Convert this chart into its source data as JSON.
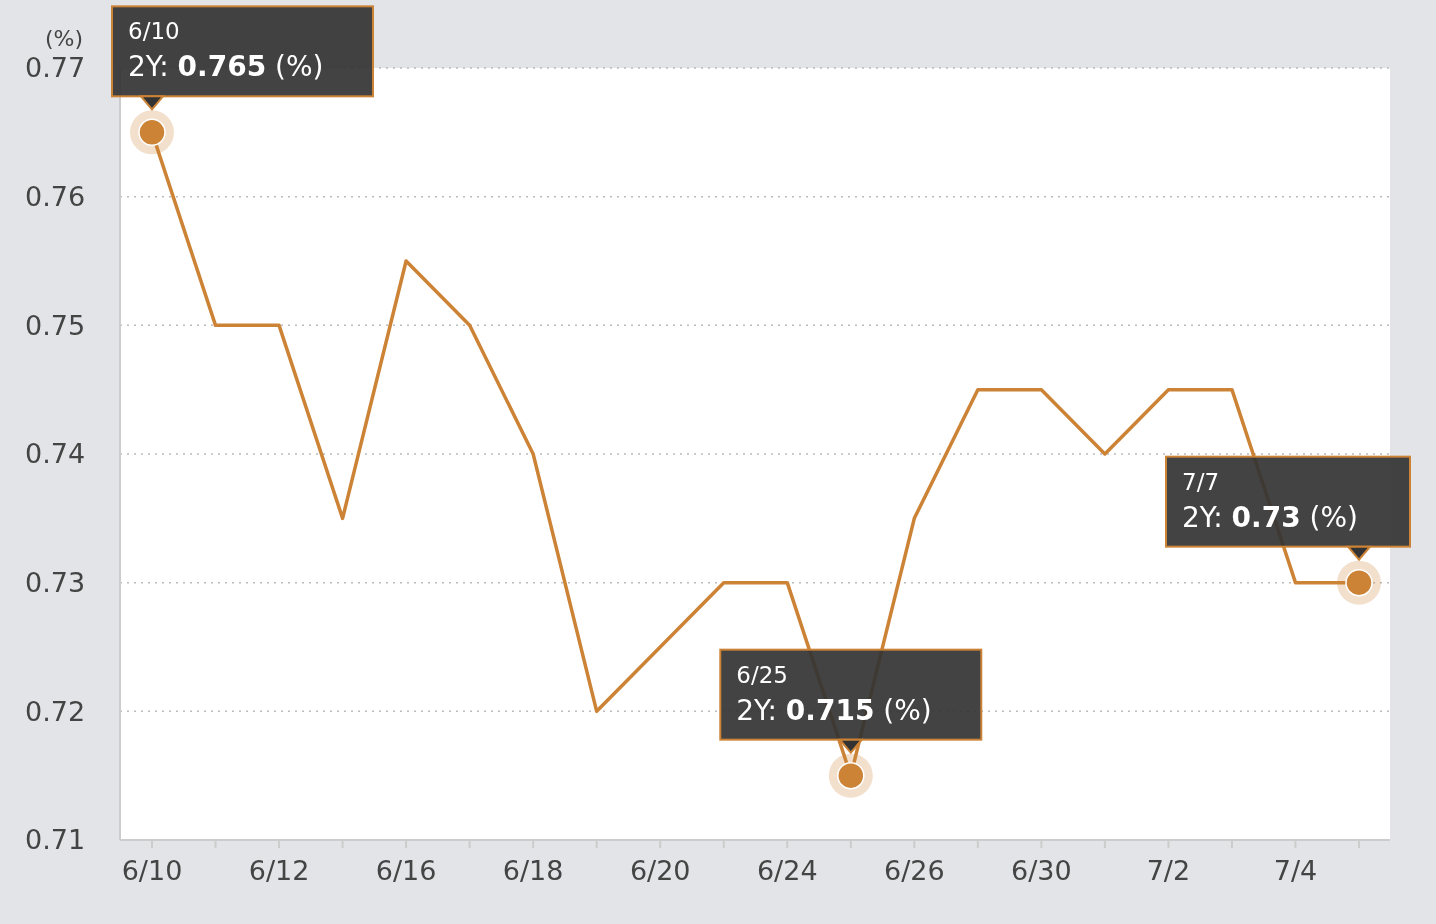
{
  "chart_data": {
    "type": "line",
    "ylabel": "(%)",
    "categories": [
      "6/10",
      null,
      "6/12",
      null,
      "6/16",
      null,
      "6/18",
      null,
      "6/20",
      null,
      "6/24",
      null,
      "6/26",
      null,
      "6/30",
      null,
      "7/2",
      null,
      "7/4",
      null
    ],
    "series": [
      {
        "color": "#cc8336",
        "values": [
          0.765,
          0.75,
          0.75,
          0.735,
          0.755,
          0.75,
          0.74,
          0.72,
          0.725,
          0.73,
          0.73,
          0.715,
          0.735,
          0.745,
          0.745,
          0.74,
          0.745,
          0.745,
          0.73,
          0.73
        ]
      }
    ],
    "ylim": [
      0.71,
      0.77
    ],
    "yticks": [
      0.71,
      0.72,
      0.73,
      0.74,
      0.75,
      0.76,
      0.77
    ],
    "grid": "y",
    "marker": "none",
    "line_style": "solid",
    "annotations": [
      {
        "text": "6/10\n2Y: 0.765 (%)",
        "x": "6/10",
        "y": 0.765
      },
      {
        "text": "6/25\n2Y: 0.715 (%)",
        "y": 0.715
      },
      "7/7\n2Y: 0.73 (%)"
    ]
  }
}
